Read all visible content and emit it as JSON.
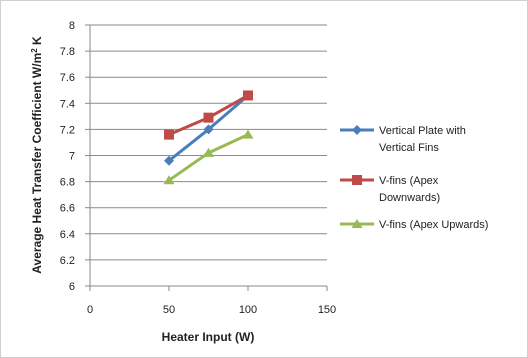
{
  "chart_data": {
    "type": "line",
    "title": "",
    "xlabel": "Heater Input (W)",
    "ylabel": "Average Heat Transfer Coefficient W/m",
    "ylabel_sup": "2",
    "ylabel_suffix": " K",
    "xlim": [
      0,
      150
    ],
    "ylim": [
      6,
      8
    ],
    "xticks": [
      0,
      50,
      100,
      150
    ],
    "yticks": [
      6,
      6.2,
      6.4,
      6.6,
      6.8,
      7,
      7.2,
      7.4,
      7.6,
      7.8,
      8
    ],
    "ytick_labels": [
      "6",
      "6.2",
      "6.4",
      "6.6",
      "6.8",
      "7",
      "7.2",
      "7.4",
      "7.6",
      "7.8",
      "8"
    ],
    "grid": "horizontal",
    "legend_position": "right",
    "series": [
      {
        "name_lines": [
          "Vertical Plate with",
          "Vertical Fins"
        ],
        "color": "#4a7ebb",
        "marker": "diamond",
        "x": [
          50,
          75,
          100
        ],
        "y": [
          6.96,
          7.2,
          7.46
        ]
      },
      {
        "name_lines": [
          "V-fins (Apex",
          "Downwards)"
        ],
        "color": "#be4b48",
        "marker": "square",
        "x": [
          50,
          75,
          100
        ],
        "y": [
          7.16,
          7.29,
          7.46
        ]
      },
      {
        "name_lines": [
          "V-fins (Apex Upwards)"
        ],
        "color": "#98b954",
        "marker": "triangle",
        "x": [
          50,
          75,
          100
        ],
        "y": [
          6.81,
          7.02,
          7.16
        ]
      }
    ]
  }
}
